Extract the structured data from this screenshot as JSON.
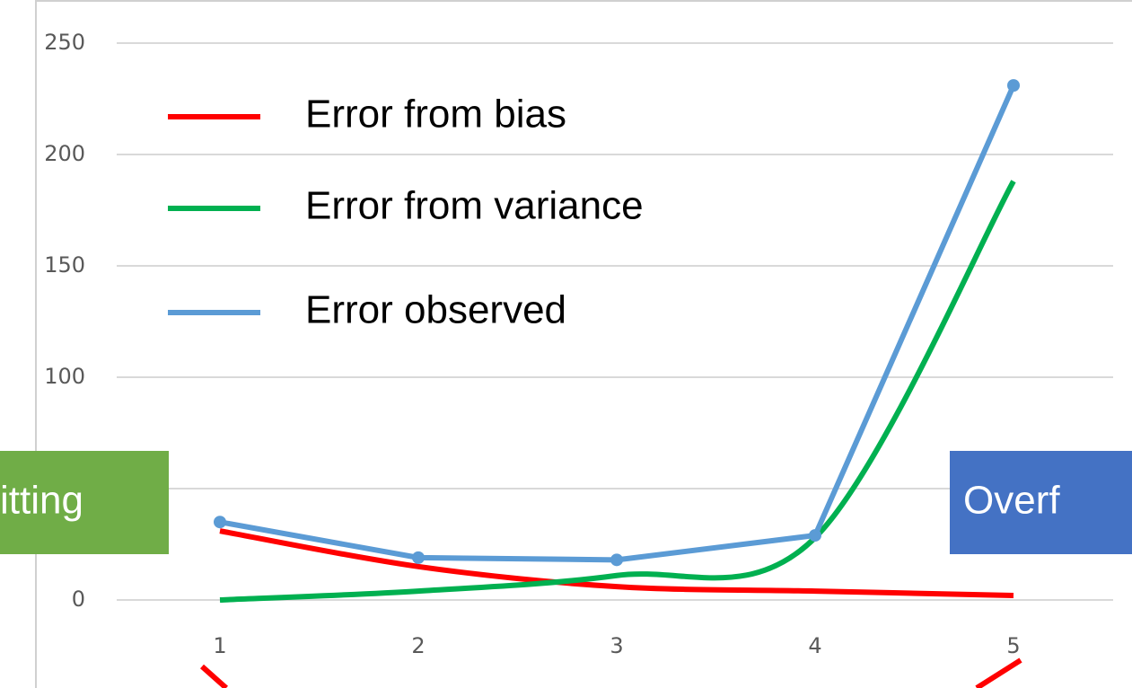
{
  "chart_data": {
    "type": "line",
    "categories": [
      "1",
      "2",
      "3",
      "4",
      "5"
    ],
    "series": [
      {
        "name": "Error from bias",
        "color": "#ff0000",
        "smooth": true,
        "markers": false,
        "values": [
          31,
          15,
          6,
          4,
          2
        ]
      },
      {
        "name": "Error from variance",
        "color": "#00b050",
        "smooth": true,
        "markers": false,
        "values": [
          0,
          4,
          11,
          28,
          188
        ]
      },
      {
        "name": "Error observed",
        "color": "#5b9bd5",
        "smooth": false,
        "markers": true,
        "values": [
          35,
          19,
          18,
          29,
          231
        ]
      }
    ],
    "ylim": [
      0,
      250
    ],
    "yticks": [
      0,
      50,
      100,
      150,
      200,
      250
    ],
    "grid": true,
    "legend": "upper left",
    "annotations": [
      {
        "text": "itting",
        "color": "#70ad47"
      },
      {
        "text": "Overf",
        "color": "#4472c4"
      }
    ]
  }
}
